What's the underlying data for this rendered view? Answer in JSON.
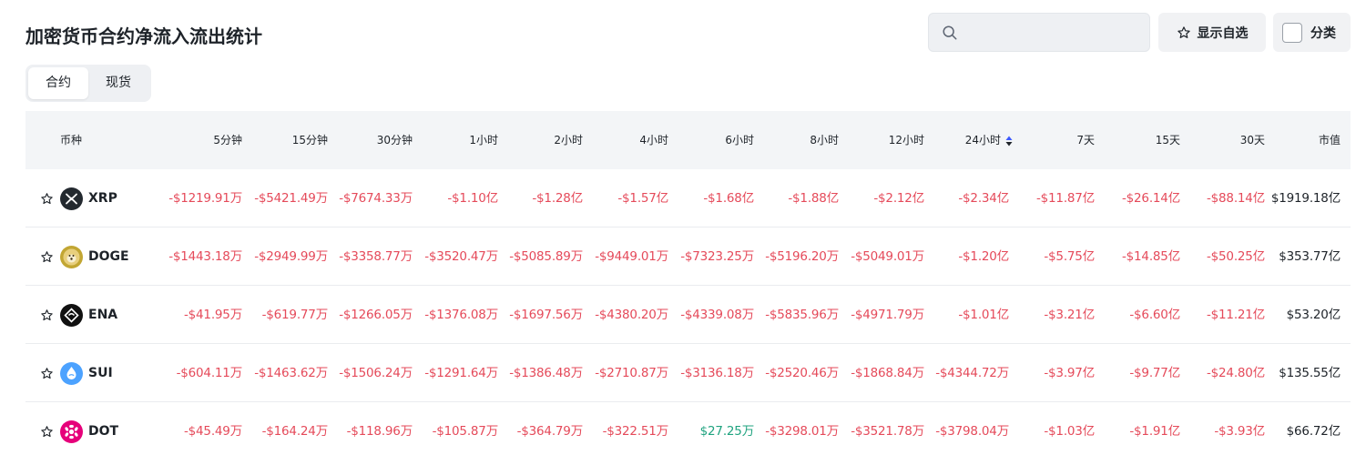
{
  "header": {
    "title": "加密货币合约净流入流出统计"
  },
  "search": {
    "value": "",
    "placeholder": ""
  },
  "buttons": {
    "favorites_label": "显示自选",
    "category_label": "分类"
  },
  "tabs": [
    {
      "label": "合约",
      "active": true
    },
    {
      "label": "现货",
      "active": false
    }
  ],
  "colors": {
    "negative": "#e54a5a",
    "positive": "#1fa37f",
    "header_bg": "#f3f5f7"
  },
  "table": {
    "columns": [
      "币种",
      "5分钟",
      "15分钟",
      "30分钟",
      "1小时",
      "2小时",
      "4小时",
      "6小时",
      "8小时",
      "12小时",
      "24小时",
      "7天",
      "15天",
      "30天",
      "市值"
    ],
    "sorted_column": "24小时",
    "rows": [
      {
        "symbol": "XRP",
        "icon": "xrp-logo-icon",
        "values": [
          "-$1219.91万",
          "-$5421.49万",
          "-$7674.33万",
          "-$1.10亿",
          "-$1.28亿",
          "-$1.57亿",
          "-$1.68亿",
          "-$1.88亿",
          "-$2.12亿",
          "-$2.34亿",
          "-$11.87亿",
          "-$26.14亿",
          "-$88.14亿"
        ],
        "market_cap": "$1919.18亿"
      },
      {
        "symbol": "DOGE",
        "icon": "doge-logo-icon",
        "values": [
          "-$1443.18万",
          "-$2949.99万",
          "-$3358.77万",
          "-$3520.47万",
          "-$5085.89万",
          "-$9449.01万",
          "-$7323.25万",
          "-$5196.20万",
          "-$5049.01万",
          "-$1.20亿",
          "-$5.75亿",
          "-$14.85亿",
          "-$50.25亿"
        ],
        "market_cap": "$353.77亿"
      },
      {
        "symbol": "ENA",
        "icon": "ena-logo-icon",
        "values": [
          "-$41.95万",
          "-$619.77万",
          "-$1266.05万",
          "-$1376.08万",
          "-$1697.56万",
          "-$4380.20万",
          "-$4339.08万",
          "-$5835.96万",
          "-$4971.79万",
          "-$1.01亿",
          "-$3.21亿",
          "-$6.60亿",
          "-$11.21亿"
        ],
        "market_cap": "$53.20亿"
      },
      {
        "symbol": "SUI",
        "icon": "sui-logo-icon",
        "values": [
          "-$604.11万",
          "-$1463.62万",
          "-$1506.24万",
          "-$1291.64万",
          "-$1386.48万",
          "-$2710.87万",
          "-$3136.18万",
          "-$2520.46万",
          "-$1868.84万",
          "-$4344.72万",
          "-$3.97亿",
          "-$9.77亿",
          "-$24.80亿"
        ],
        "market_cap": "$135.55亿"
      },
      {
        "symbol": "DOT",
        "icon": "dot-logo-icon",
        "values": [
          "-$45.49万",
          "-$164.24万",
          "-$118.96万",
          "-$105.87万",
          "-$364.79万",
          "-$322.51万",
          "$27.25万",
          "-$3298.01万",
          "-$3521.78万",
          "-$3798.04万",
          "-$1.03亿",
          "-$1.91亿",
          "-$3.93亿"
        ],
        "market_cap": "$66.72亿"
      }
    ]
  }
}
